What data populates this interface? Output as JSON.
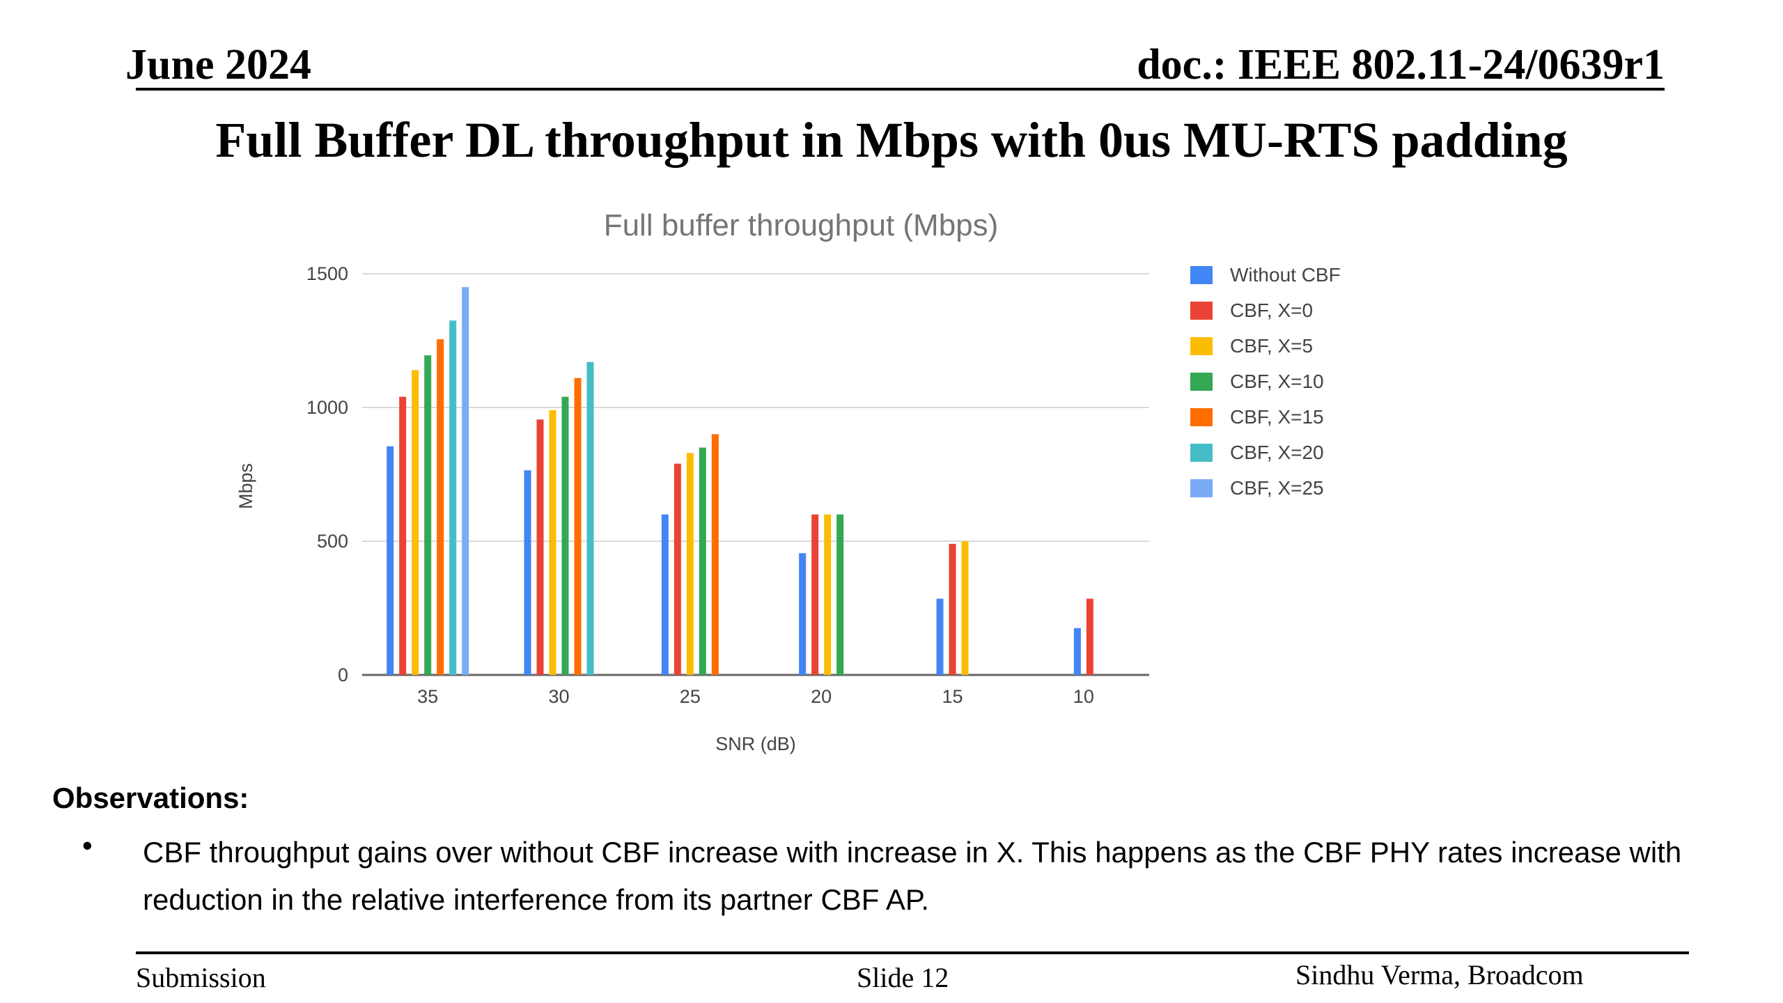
{
  "header": {
    "date": "June 2024",
    "doc": "doc.: IEEE 802.11-24/0639r1"
  },
  "slide_title": "Full Buffer DL throughput in Mbps with 0us MU-RTS padding",
  "chart_data": {
    "type": "bar",
    "title": "Full buffer throughput (Mbps)",
    "xlabel": "SNR (dB)",
    "ylabel": "Mbps",
    "ylim": [
      0,
      1500
    ],
    "yticks": [
      "0",
      "500",
      "1000",
      "1500"
    ],
    "categories": [
      "35",
      "30",
      "25",
      "20",
      "15",
      "10"
    ],
    "grid": true,
    "legend_position": "right",
    "series": [
      {
        "name": "Without CBF",
        "color": "#4285f4",
        "values": [
          855,
          765,
          600,
          455,
          285,
          175
        ]
      },
      {
        "name": "CBF, X=0",
        "color": "#ea4335",
        "values": [
          1040,
          955,
          790,
          600,
          490,
          285
        ]
      },
      {
        "name": "CBF, X=5",
        "color": "#fbbc04",
        "values": [
          1140,
          990,
          830,
          600,
          500,
          null
        ]
      },
      {
        "name": "CBF, X=10",
        "color": "#34a853",
        "values": [
          1195,
          1040,
          850,
          600,
          null,
          null
        ]
      },
      {
        "name": "CBF, X=15",
        "color": "#ff6d01",
        "values": [
          1255,
          1110,
          900,
          null,
          null,
          null
        ]
      },
      {
        "name": "CBF, X=20",
        "color": "#46bdc6",
        "values": [
          1325,
          1170,
          null,
          null,
          null,
          null
        ]
      },
      {
        "name": "CBF, X=25",
        "color": "#7baaf7",
        "values": [
          1450,
          null,
          null,
          null,
          null,
          null
        ]
      }
    ]
  },
  "observations": {
    "heading": "Observations:",
    "bullet_glyph": "•",
    "items": [
      "CBF throughput gains over without CBF increase with increase in X. This happens as the CBF PHY rates increase with reduction in the relative interference from its partner CBF AP."
    ]
  },
  "footer": {
    "left": "Submission",
    "center": "Slide 12",
    "right": "Sindhu Verma, Broadcom"
  }
}
